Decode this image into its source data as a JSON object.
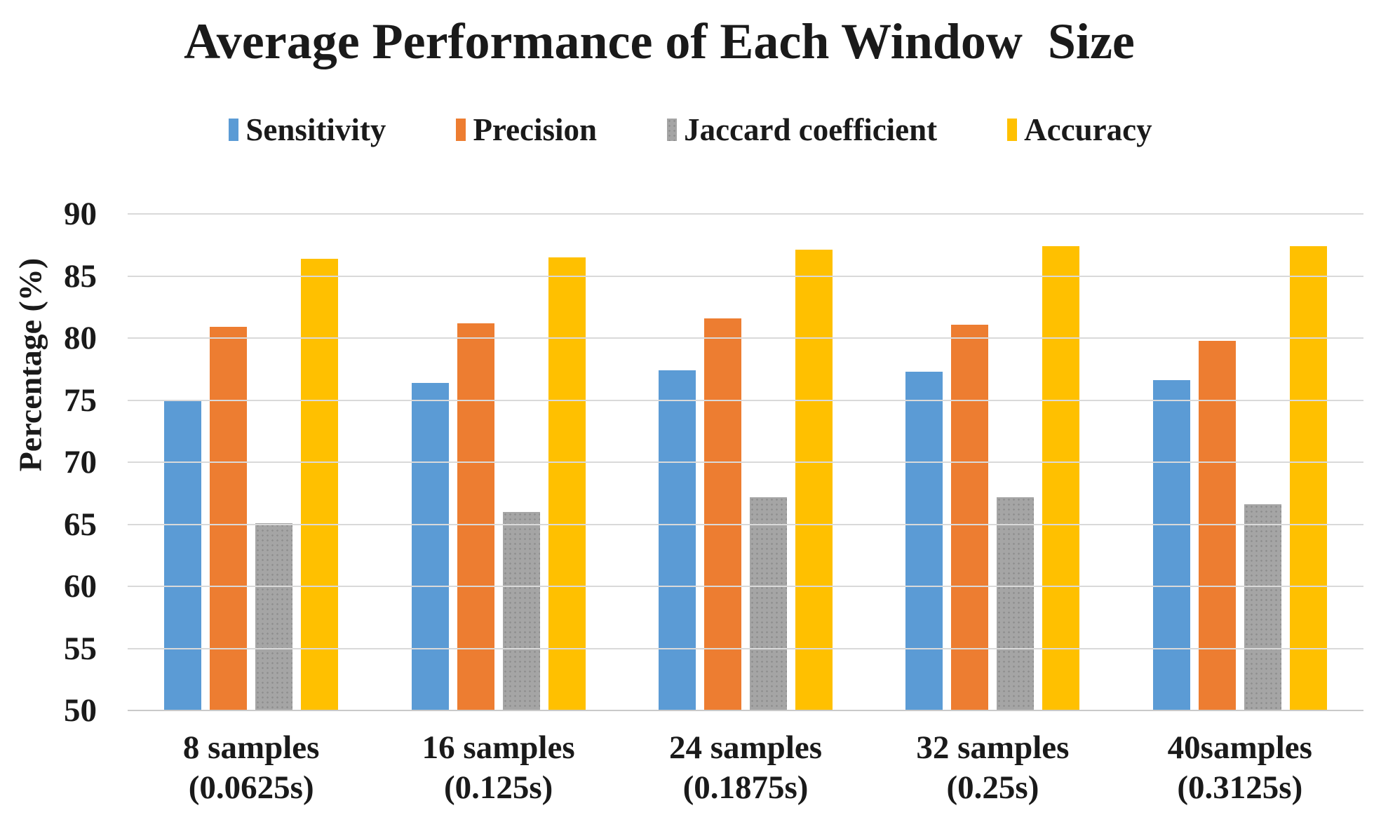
{
  "chart_data": {
    "type": "bar",
    "title": "Average Performance of Each Window  Size",
    "xlabel": "",
    "ylabel": "Percentage (%)",
    "ylim": [
      50,
      90
    ],
    "ytick_step": 5,
    "yticks": [
      90,
      85,
      80,
      75,
      70,
      65,
      60,
      55,
      50
    ],
    "grid": true,
    "legend_position": "top",
    "categories": [
      "8 samples\n(0.0625s)",
      "16 samples\n(0.125s)",
      "24 samples\n(0.1875s)",
      "32 samples\n(0.25s)",
      "40samples\n(0.3125s)"
    ],
    "series": [
      {
        "name": "Sensitivity",
        "color": "#5B9BD5",
        "pattern": "solid",
        "values": [
          75.0,
          76.4,
          77.4,
          77.3,
          76.6
        ]
      },
      {
        "name": "Precision",
        "color": "#ED7D31",
        "pattern": "solid",
        "values": [
          80.9,
          81.2,
          81.6,
          81.1,
          79.8
        ]
      },
      {
        "name": "Jaccard coefficient",
        "color": "#A5A5A5",
        "pattern": "stipple",
        "values": [
          65.1,
          66.0,
          67.2,
          67.2,
          66.6
        ]
      },
      {
        "name": "Accuracy",
        "color": "#FFC000",
        "pattern": "solid",
        "values": [
          86.4,
          86.5,
          87.1,
          87.4,
          87.4
        ]
      }
    ]
  }
}
